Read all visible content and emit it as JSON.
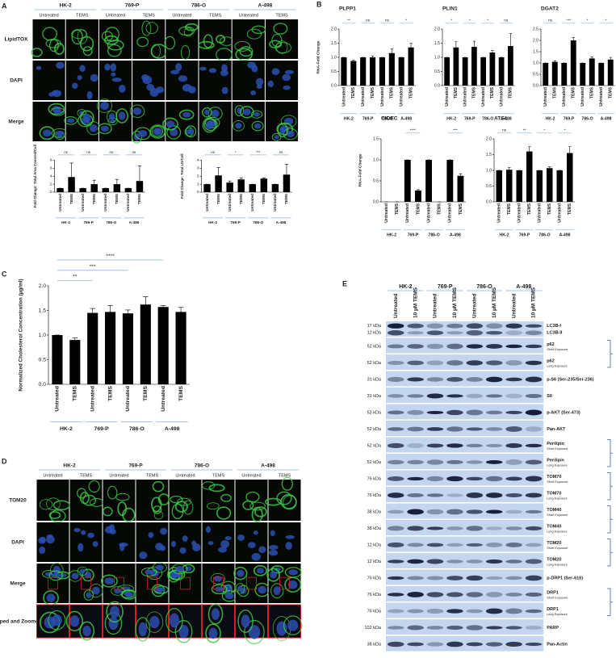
{
  "panel_letters": [
    "A",
    "B",
    "C",
    "D",
    "E"
  ],
  "microscopy_a": {
    "cell_lines": [
      "HK-2",
      "769-P",
      "786-O",
      "A-498"
    ],
    "conditions": [
      "Untreated",
      "TEMS"
    ],
    "rows": [
      "LipidTOX",
      "DAPI",
      "Merge"
    ]
  },
  "microscopy_d": {
    "cell_lines": [
      "HK-2",
      "769-P",
      "786-O",
      "A-498"
    ],
    "conditions": [
      "Untreated",
      "TEMS"
    ],
    "rows": [
      "TOM20",
      "DAPI",
      "Merge",
      "Cropped and Zoomed-In"
    ]
  },
  "chart_data": [
    {
      "type": "bar",
      "y_label": "Fold Change: Total Area Covered/Cell",
      "categories": [
        "Untreated",
        "TEMS",
        "Untreated",
        "TEMS",
        "Untreated",
        "TEMS",
        "Untreated",
        "TEMS"
      ],
      "groups": [
        "HK-2",
        "769-P",
        "786-O",
        "A-498"
      ],
      "values": [
        1,
        3.8,
        1,
        2,
        1,
        2,
        1,
        2.8
      ],
      "errors": [
        0,
        3.5,
        0,
        1,
        0,
        1.2,
        0,
        3.8
      ],
      "significance": [
        "ns",
        "ns",
        "ns",
        "ns"
      ],
      "color": "#000000",
      "ylim": [
        0,
        8
      ],
      "yticks": [
        0,
        2,
        4,
        6,
        8
      ]
    },
    {
      "type": "bar",
      "y_label": "Fold Change: Total LD/Cell",
      "categories": [
        "Untreated",
        "TEMS",
        "Untreated",
        "TEMS",
        "Untreated",
        "TEMS",
        "Untreated",
        "TEMS"
      ],
      "groups": [
        "HK-2",
        "769-P",
        "786-O",
        "A-498"
      ],
      "values": [
        1,
        2.1,
        1.2,
        1.6,
        1,
        1.7,
        1,
        2.2
      ],
      "errors": [
        0,
        1,
        0.2,
        0.15,
        0,
        0.1,
        0,
        1.3
      ],
      "significance": [
        "ns",
        "*",
        "***",
        "ns"
      ],
      "color": "#000000",
      "ylim": [
        0,
        4
      ],
      "yticks": [
        0,
        1,
        2,
        3,
        4
      ]
    },
    {
      "type": "bar",
      "title": "PLPP1",
      "y_label": "RNA-Fold Change",
      "categories": [
        "Untreated",
        "TEMS",
        "Untreated",
        "TEMS",
        "Untreated",
        "TEMS",
        "Untreated",
        "TEMS"
      ],
      "groups": [
        "HK-2",
        "769-P",
        "786-O",
        "A-498"
      ],
      "values": [
        1,
        0.87,
        1,
        1,
        1,
        1.15,
        1,
        1.35
      ],
      "errors": [
        0,
        0.03,
        0,
        0.05,
        0,
        0.15,
        0,
        0.15
      ],
      "significance": [
        "**",
        "ns",
        "ns",
        "*"
      ],
      "color": "#000000",
      "ylim": [
        0,
        2
      ],
      "yticks": [
        {
          "value": 0,
          "label": "0.0"
        },
        {
          "value": 0.5,
          "label": "0.5"
        },
        {
          "value": 1,
          "label": "1.0"
        },
        {
          "value": 1.5,
          "label": "1.5"
        },
        {
          "value": 2,
          "label": "2.0"
        }
      ]
    },
    {
      "type": "bar",
      "title": "PLIN1",
      "categories": [
        "Untreated",
        "TEMS",
        "Untreated",
        "TEMS",
        "Untreated",
        "TEMS",
        "Untreated",
        "TEMS"
      ],
      "groups": [
        "HK-2",
        "769-P",
        "786-O",
        "A-498"
      ],
      "values": [
        1,
        1.35,
        1,
        1.37,
        1,
        1.17,
        1,
        1.4
      ],
      "errors": [
        0,
        0.2,
        0,
        0.2,
        0,
        0.07,
        0,
        0.45
      ],
      "significance": [
        "*",
        "*",
        "*",
        "ns"
      ],
      "color": "#000000",
      "ylim": [
        0,
        2
      ],
      "yticks": [
        {
          "value": 0,
          "label": "0.0"
        },
        {
          "value": 0.5,
          "label": "0.5"
        },
        {
          "value": 1,
          "label": "1.0"
        },
        {
          "value": 1.5,
          "label": "1.5"
        },
        {
          "value": 2,
          "label": "2.0"
        }
      ]
    },
    {
      "type": "bar",
      "title": "DGAT2",
      "categories": [
        "Untreated",
        "TEMS",
        "Untreated",
        "TEMS",
        "Untreated",
        "TEMS",
        "Untreated",
        "TEMS"
      ],
      "groups": [
        "HK-2",
        "769-P",
        "786-O",
        "A-498"
      ],
      "values": [
        1,
        1.05,
        1,
        2,
        1,
        1.2,
        1,
        1.15
      ],
      "errors": [
        0,
        0.05,
        0,
        0.12,
        0,
        0.06,
        0,
        0.1
      ],
      "significance": [
        "ns",
        "***",
        "*",
        "*"
      ],
      "color": "#000000",
      "ylim": [
        0,
        2.5
      ],
      "yticks": [
        {
          "value": 0,
          "label": "0.0"
        },
        {
          "value": 0.5,
          "label": "0.5"
        },
        {
          "value": 1,
          "label": "1.0"
        },
        {
          "value": 1.5,
          "label": "1.5"
        },
        {
          "value": 2,
          "label": "2.0"
        },
        {
          "value": 2.5,
          "label": "2.5"
        }
      ]
    },
    {
      "type": "bar",
      "title": "CIDEC",
      "y_label": "RNA-Fold Change",
      "categories": [
        "Untreated",
        "TEMS",
        "Untreated",
        "TEMS",
        "Untreated",
        "TEMS",
        "Untreated",
        "TEMS"
      ],
      "groups": [
        "HK-2",
        "769-P",
        "786-O",
        "A-498"
      ],
      "values": [
        0,
        0,
        1,
        0.27,
        1,
        0,
        1,
        0.62
      ],
      "errors": [
        0,
        0,
        0,
        0.02,
        0,
        0,
        0,
        0.05
      ],
      "significance": [
        null,
        "****",
        null,
        "***"
      ],
      "color": "#000000",
      "ylim": [
        0,
        1.5
      ],
      "yticks": [
        {
          "value": 0,
          "label": "0.0"
        },
        {
          "value": 0.5,
          "label": "0.5"
        },
        {
          "value": 1,
          "label": "1.0"
        },
        {
          "value": 1.5,
          "label": "1.5"
        }
      ]
    },
    {
      "type": "bar",
      "title": "ATGL",
      "categories": [
        "Untreated",
        "TEMS",
        "Untreated",
        "TEMS",
        "Untreated",
        "TEMS",
        "Untreated",
        "TEMS"
      ],
      "groups": [
        "HK-2",
        "769-P",
        "786-O",
        "A-498"
      ],
      "values": [
        1,
        1.02,
        1,
        1.6,
        1,
        1.07,
        1,
        1.55
      ],
      "errors": [
        0,
        0.07,
        0,
        0.15,
        0,
        0.04,
        0,
        0.2
      ],
      "significance": [
        "ns",
        "**",
        "*",
        "*"
      ],
      "color": "#000000",
      "ylim": [
        0,
        2
      ],
      "yticks": [
        {
          "value": 0,
          "label": "0.0"
        },
        {
          "value": 0.5,
          "label": "0.5"
        },
        {
          "value": 1,
          "label": "1.0"
        },
        {
          "value": 1.5,
          "label": "1.5"
        },
        {
          "value": 2,
          "label": "2.0"
        }
      ]
    },
    {
      "type": "bar",
      "y_label": "Normalized Cholesterol Concentration (µg/ml)",
      "categories": [
        "Untreated",
        "TEMS",
        "Untreated",
        "TEMS",
        "Untreated",
        "TEMS",
        "Untreated",
        "TEMS"
      ],
      "groups": [
        "HK-2",
        "769-P",
        "786-O",
        "A-498"
      ],
      "values": [
        1,
        0.9,
        1.45,
        1.47,
        1.44,
        1.62,
        1.57,
        1.47
      ],
      "errors": [
        0,
        0.04,
        0.09,
        0.13,
        0.07,
        0.16,
        0.03,
        0.09
      ],
      "significance": [
        "**",
        "***",
        "****"
      ],
      "color": "#000000",
      "ylim": [
        0,
        2
      ],
      "yticks": [
        {
          "value": 0,
          "label": "0.0"
        },
        {
          "value": 0.5,
          "label": "0.5"
        },
        {
          "value": 1,
          "label": "1.0"
        },
        {
          "value": 1.5,
          "label": "1.5"
        },
        {
          "value": 2,
          "label": "2.0"
        }
      ]
    }
  ],
  "blot": {
    "groups": [
      "HK-2",
      "769-P",
      "786-O",
      "A-498"
    ],
    "lanes": [
      "Untreated",
      "10 µM TEMS"
    ],
    "strips": [
      {
        "bands": [
          {
            "size": "17 kDa",
            "label": "LC3B-I"
          },
          {
            "size": "12 kDa",
            "label": "LC3B-II"
          }
        ]
      },
      {
        "bands": [
          {
            "size": "52 kDa",
            "label": "p62"
          }
        ],
        "exposure": "Short Exposure"
      },
      {
        "bands": [
          {
            "size": "52 kDa",
            "label": "p62"
          }
        ],
        "exposure": "Long Exposure"
      },
      {
        "bands": [
          {
            "size": "31 kDa",
            "label": "p-S6 (Ser-235/Ser-236)"
          }
        ]
      },
      {
        "bands": [
          {
            "size": "31 kDa",
            "label": "S6"
          }
        ]
      },
      {
        "bands": [
          {
            "size": "52 kDa",
            "label": "p-AKT (Ser-473)"
          }
        ]
      },
      {
        "bands": [
          {
            "size": "52 kDa",
            "label": "Pan-AKT"
          }
        ]
      },
      {
        "bands": [
          {
            "size": "52 kDa",
            "label": "Perilipin"
          }
        ],
        "exposure": "Short Exposure"
      },
      {
        "bands": [
          {
            "size": "52 kDa",
            "label": "Perilipin"
          }
        ],
        "exposure": "Long Exposure"
      },
      {
        "bands": [
          {
            "size": "76 kDa",
            "label": "TOM70"
          }
        ],
        "exposure": "Short Exposure"
      },
      {
        "bands": [
          {
            "size": "76 kDa",
            "label": "TOM70"
          }
        ],
        "exposure": "Long Exposure"
      },
      {
        "bands": [
          {
            "size": "38 kDa",
            "label": "TOM40"
          }
        ],
        "exposure": "Short Exposure"
      },
      {
        "bands": [
          {
            "size": "38 kDa",
            "label": "TOM40"
          }
        ],
        "exposure": "Long Exposure"
      },
      {
        "bands": [
          {
            "size": "12 kDa",
            "label": "TOM20"
          }
        ],
        "exposure": "Short Exposure"
      },
      {
        "bands": [
          {
            "size": "12 kDa",
            "label": "TOM20"
          }
        ],
        "exposure": "Long Exposure"
      },
      {
        "bands": [
          {
            "size": "76 kDa",
            "label": "p-DRP1 (Ser-616)"
          }
        ]
      },
      {
        "bands": [
          {
            "size": "76 kDa",
            "label": "DRP1"
          }
        ],
        "exposure": "Short Exposure"
      },
      {
        "bands": [
          {
            "size": "76 kDa",
            "label": "DRP1"
          }
        ],
        "exposure": "Long Exposure"
      },
      {
        "bands": [
          {
            "size": "102 kDa",
            "label": "PARP"
          }
        ]
      },
      {
        "bands": [
          {
            "size": "38 kDa",
            "label": "Pan-Actin"
          }
        ]
      }
    ]
  }
}
